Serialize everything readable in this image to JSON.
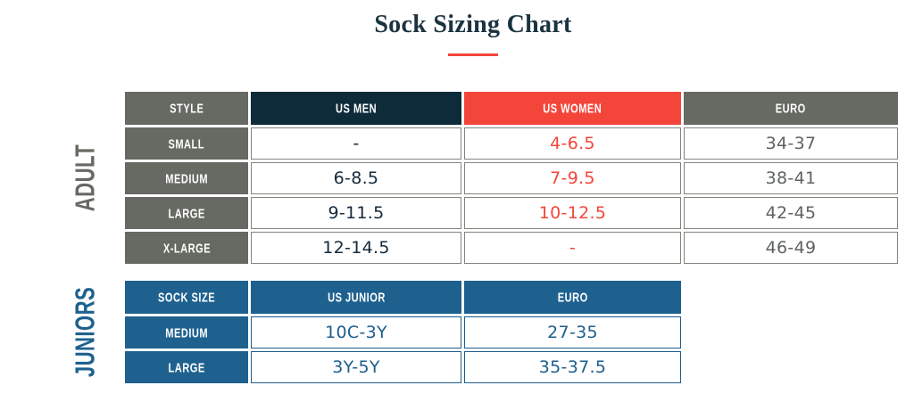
{
  "title": "Sock Sizing Chart",
  "colors": {
    "title_navy": "#1b3340",
    "accent_red": "#f4453a",
    "header_gray": "#666a62",
    "header_navy": "#0e2b3a",
    "header_red": "#f4453a",
    "header_blue": "#1e618f",
    "value_navy": "#14293a",
    "value_red": "#f4453a",
    "value_gray": "#5e6360",
    "value_blue": "#1d5e8c"
  },
  "adult": {
    "side_label": "ADULT",
    "headers": [
      "STYLE",
      "US MEN",
      "US WOMEN",
      "EURO"
    ],
    "rows": [
      {
        "style": "SMALL",
        "us_men": "-",
        "us_women": "4-6.5",
        "euro": "34-37"
      },
      {
        "style": "MEDIUM",
        "us_men": "6-8.5",
        "us_women": "7-9.5",
        "euro": "38-41"
      },
      {
        "style": "LARGE",
        "us_men": "9-11.5",
        "us_women": "10-12.5",
        "euro": "42-45"
      },
      {
        "style": "X-LARGE",
        "us_men": "12-14.5",
        "us_women": "-",
        "euro": "46-49"
      }
    ]
  },
  "juniors": {
    "side_label": "JUNIORS",
    "headers": [
      "SOCK SIZE",
      "US JUNIOR",
      "EURO"
    ],
    "rows": [
      {
        "size": "MEDIUM",
        "us_junior": "10C-3Y",
        "euro": "27-35"
      },
      {
        "size": "LARGE",
        "us_junior": "3Y-5Y",
        "euro": "35-37.5"
      }
    ]
  },
  "chart_data": [
    {
      "type": "table",
      "title": "Sock Sizing Chart",
      "section": "ADULT",
      "columns": [
        "STYLE",
        "US MEN",
        "US WOMEN",
        "EURO"
      ],
      "rows": [
        [
          "SMALL",
          "-",
          "4-6.5",
          "34-37"
        ],
        [
          "MEDIUM",
          "6-8.5",
          "7-9.5",
          "38-41"
        ],
        [
          "LARGE",
          "9-11.5",
          "10-12.5",
          "42-45"
        ],
        [
          "X-LARGE",
          "12-14.5",
          "-",
          "46-49"
        ]
      ]
    },
    {
      "type": "table",
      "title": "Sock Sizing Chart",
      "section": "JUNIORS",
      "columns": [
        "SOCK SIZE",
        "US JUNIOR",
        "EURO"
      ],
      "rows": [
        [
          "MEDIUM",
          "10C-3Y",
          "27-35"
        ],
        [
          "LARGE",
          "3Y-5Y",
          "35-37.5"
        ]
      ]
    }
  ]
}
